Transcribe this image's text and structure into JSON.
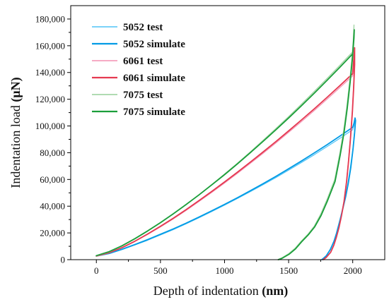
{
  "chart_data": {
    "type": "line",
    "title": "",
    "xlabel": "Depth of indentation",
    "xlabel_unit": "(nm)",
    "ylabel": "Indentation load",
    "ylabel_unit": "(μN)",
    "xlim": [
      -200,
      2250
    ],
    "ylim": [
      0,
      190000
    ],
    "x_ticks": [
      0,
      500,
      1000,
      1500,
      2000
    ],
    "x_tick_labels": [
      "0",
      "500",
      "1000",
      "1500",
      "2000"
    ],
    "y_ticks": [
      0,
      20000,
      40000,
      60000,
      80000,
      100000,
      120000,
      140000,
      160000,
      180000
    ],
    "y_tick_labels": [
      "0",
      "20,000",
      "40,000",
      "60,000",
      "80,000",
      "100,000",
      "120,000",
      "140,000",
      "160,000",
      "180,000"
    ],
    "grid": false,
    "legend_position": "top-left",
    "series": [
      {
        "name": "5052 test",
        "color": "#4fc3f7",
        "stroke_width": 1.2,
        "points": [
          [
            0,
            2500
          ],
          [
            100,
            4500
          ],
          [
            200,
            7500
          ],
          [
            300,
            11000
          ],
          [
            400,
            14500
          ],
          [
            500,
            18500
          ],
          [
            600,
            22500
          ],
          [
            700,
            26800
          ],
          [
            800,
            31300
          ],
          [
            900,
            36000
          ],
          [
            1000,
            40800
          ],
          [
            1100,
            45700
          ],
          [
            1200,
            50800
          ],
          [
            1300,
            56000
          ],
          [
            1400,
            61400
          ],
          [
            1500,
            67000
          ],
          [
            1600,
            72700
          ],
          [
            1700,
            78500
          ],
          [
            1800,
            84600
          ],
          [
            1900,
            90800
          ],
          [
            2000,
            97200
          ],
          [
            2010,
            100500
          ],
          [
            2015,
            104500
          ],
          [
            2020,
            103000
          ],
          [
            2012,
            94000
          ],
          [
            2000,
            82000
          ],
          [
            1980,
            68000
          ],
          [
            1960,
            56000
          ],
          [
            1940,
            46000
          ],
          [
            1920,
            38000
          ],
          [
            1900,
            30000
          ],
          [
            1870,
            19000
          ],
          [
            1850,
            13000
          ],
          [
            1820,
            7000
          ],
          [
            1790,
            2500
          ],
          [
            1755,
            0
          ]
        ]
      },
      {
        "name": "5052 simulate",
        "color": "#039be5",
        "stroke_width": 1.8,
        "points": [
          [
            0,
            2700
          ],
          [
            100,
            4700
          ],
          [
            200,
            7800
          ],
          [
            300,
            11300
          ],
          [
            400,
            15000
          ],
          [
            500,
            19000
          ],
          [
            600,
            23000
          ],
          [
            700,
            27300
          ],
          [
            800,
            31800
          ],
          [
            900,
            36500
          ],
          [
            1000,
            41300
          ],
          [
            1100,
            46300
          ],
          [
            1200,
            51500
          ],
          [
            1300,
            56800
          ],
          [
            1400,
            62300
          ],
          [
            1500,
            68000
          ],
          [
            1600,
            73800
          ],
          [
            1700,
            79800
          ],
          [
            1800,
            86000
          ],
          [
            1900,
            92400
          ],
          [
            2000,
            99000
          ],
          [
            2010,
            102000
          ],
          [
            2018,
            106000
          ],
          [
            2022,
            104000
          ],
          [
            2015,
            95000
          ],
          [
            2003,
            83000
          ],
          [
            1985,
            69000
          ],
          [
            1965,
            57000
          ],
          [
            1945,
            47000
          ],
          [
            1925,
            39000
          ],
          [
            1905,
            31000
          ],
          [
            1875,
            20000
          ],
          [
            1855,
            14000
          ],
          [
            1825,
            7500
          ],
          [
            1795,
            3000
          ],
          [
            1760,
            0
          ]
        ]
      },
      {
        "name": "6061 test",
        "color": "#f48fb1",
        "stroke_width": 1.2,
        "points": [
          [
            0,
            2500
          ],
          [
            100,
            5000
          ],
          [
            200,
            8800
          ],
          [
            300,
            13500
          ],
          [
            400,
            18800
          ],
          [
            500,
            24500
          ],
          [
            600,
            30500
          ],
          [
            700,
            36800
          ],
          [
            800,
            43500
          ],
          [
            900,
            50300
          ],
          [
            1000,
            57300
          ],
          [
            1100,
            64500
          ],
          [
            1200,
            72000
          ],
          [
            1300,
            79500
          ],
          [
            1400,
            87300
          ],
          [
            1500,
            95200
          ],
          [
            1600,
            103300
          ],
          [
            1700,
            111500
          ],
          [
            1800,
            120000
          ],
          [
            1900,
            128700
          ],
          [
            2000,
            137500
          ],
          [
            2008,
            150000
          ],
          [
            2012,
            157000
          ],
          [
            2012,
            145000
          ],
          [
            2005,
            128000
          ],
          [
            1995,
            110000
          ],
          [
            1980,
            90000
          ],
          [
            1965,
            73000
          ],
          [
            1950,
            58000
          ],
          [
            1930,
            43000
          ],
          [
            1910,
            32000
          ],
          [
            1890,
            23000
          ],
          [
            1870,
            16000
          ],
          [
            1850,
            10000
          ],
          [
            1825,
            5000
          ],
          [
            1790,
            1500
          ],
          [
            1765,
            0
          ]
        ]
      },
      {
        "name": "6061 simulate",
        "color": "#e53950",
        "stroke_width": 1.8,
        "points": [
          [
            0,
            2700
          ],
          [
            100,
            5200
          ],
          [
            200,
            9000
          ],
          [
            300,
            13800
          ],
          [
            400,
            19200
          ],
          [
            500,
            25000
          ],
          [
            600,
            31000
          ],
          [
            700,
            37400
          ],
          [
            800,
            44100
          ],
          [
            900,
            51000
          ],
          [
            1000,
            58100
          ],
          [
            1100,
            65400
          ],
          [
            1200,
            72900
          ],
          [
            1300,
            80500
          ],
          [
            1400,
            88300
          ],
          [
            1500,
            96300
          ],
          [
            1600,
            104500
          ],
          [
            1700,
            112800
          ],
          [
            1800,
            121400
          ],
          [
            1900,
            130200
          ],
          [
            2000,
            139200
          ],
          [
            2010,
            152000
          ],
          [
            2015,
            158500
          ],
          [
            2015,
            146000
          ],
          [
            2008,
            129000
          ],
          [
            1998,
            111000
          ],
          [
            1983,
            91000
          ],
          [
            1968,
            74000
          ],
          [
            1953,
            59000
          ],
          [
            1933,
            44000
          ],
          [
            1913,
            33000
          ],
          [
            1893,
            24000
          ],
          [
            1873,
            17000
          ],
          [
            1853,
            11000
          ],
          [
            1828,
            5500
          ],
          [
            1795,
            1800
          ],
          [
            1770,
            0
          ]
        ]
      },
      {
        "name": "7075 test",
        "color": "#a5d6a7",
        "stroke_width": 1.4,
        "points": [
          [
            0,
            2800
          ],
          [
            100,
            5800
          ],
          [
            200,
            10200
          ],
          [
            300,
            15500
          ],
          [
            400,
            21300
          ],
          [
            500,
            27500
          ],
          [
            600,
            34200
          ],
          [
            700,
            41200
          ],
          [
            800,
            48500
          ],
          [
            900,
            56100
          ],
          [
            1000,
            64000
          ],
          [
            1100,
            72100
          ],
          [
            1200,
            80500
          ],
          [
            1300,
            89200
          ],
          [
            1400,
            98000
          ],
          [
            1500,
            107000
          ],
          [
            1600,
            116300
          ],
          [
            1700,
            125800
          ],
          [
            1800,
            135500
          ],
          [
            1900,
            145400
          ],
          [
            2000,
            155500
          ],
          [
            2005,
            165000
          ],
          [
            2010,
            175500
          ],
          [
            2008,
            168000
          ],
          [
            1995,
            152000
          ],
          [
            1978,
            135000
          ],
          [
            1955,
            115000
          ],
          [
            1930,
            97000
          ],
          [
            1900,
            80000
          ],
          [
            1860,
            60000
          ],
          [
            1800,
            45000
          ],
          [
            1750,
            34000
          ],
          [
            1700,
            25000
          ],
          [
            1650,
            19000
          ],
          [
            1600,
            14000
          ],
          [
            1550,
            8500
          ],
          [
            1500,
            4500
          ],
          [
            1445,
            1200
          ],
          [
            1415,
            0
          ]
        ]
      },
      {
        "name": "7075 simulate",
        "color": "#1b9e3a",
        "stroke_width": 1.8,
        "points": [
          [
            0,
            3000
          ],
          [
            100,
            6000
          ],
          [
            200,
            10400
          ],
          [
            300,
            15700
          ],
          [
            400,
            21500
          ],
          [
            500,
            27700
          ],
          [
            600,
            34300
          ],
          [
            700,
            41200
          ],
          [
            800,
            48400
          ],
          [
            900,
            55900
          ],
          [
            1000,
            63600
          ],
          [
            1100,
            71600
          ],
          [
            1200,
            79900
          ],
          [
            1300,
            88400
          ],
          [
            1400,
            97100
          ],
          [
            1500,
            106000
          ],
          [
            1600,
            115100
          ],
          [
            1700,
            124500
          ],
          [
            1800,
            134100
          ],
          [
            1900,
            144000
          ],
          [
            2000,
            154000
          ],
          [
            2008,
            165000
          ],
          [
            2012,
            172000
          ],
          [
            2010,
            166000
          ],
          [
            1997,
            150000
          ],
          [
            1980,
            133000
          ],
          [
            1957,
            113000
          ],
          [
            1932,
            95000
          ],
          [
            1902,
            78000
          ],
          [
            1862,
            58500
          ],
          [
            1803,
            44000
          ],
          [
            1753,
            33000
          ],
          [
            1703,
            24500
          ],
          [
            1653,
            18500
          ],
          [
            1603,
            13500
          ],
          [
            1553,
            8000
          ],
          [
            1503,
            4000
          ],
          [
            1448,
            1000
          ],
          [
            1420,
            0
          ]
        ]
      }
    ]
  }
}
